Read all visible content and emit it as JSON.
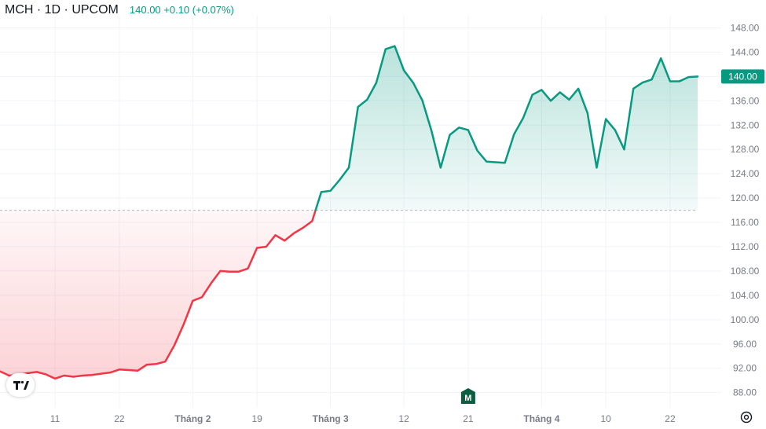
{
  "header": {
    "symbol": "MCH · 1D · UPCOM",
    "price_line": "140.00  +0.10 (+0.07%)"
  },
  "colors": {
    "up": "#089981",
    "down": "#f23645",
    "grid": "#f0f3fa",
    "axis_text": "#787b86",
    "marker_bg": "#0b5e3f"
  },
  "icons": {
    "logo": "tradingview-logo-icon",
    "settings": "gear-icon",
    "marker": "m-marker-icon"
  },
  "chart_data": {
    "type": "area",
    "title": "MCH · 1D · UPCOM",
    "baseline": 118,
    "ylim": [
      85.5,
      150
    ],
    "y_ticks": [
      88,
      92,
      96,
      100,
      104,
      108,
      112,
      116,
      120,
      124,
      128,
      132,
      136,
      140,
      144,
      148
    ],
    "y_tick_labels": [
      "88.00",
      "92.00",
      "96.00",
      "100.00",
      "104.00",
      "108.00",
      "112.00",
      "116.00",
      "120.00",
      "124.00",
      "128.00",
      "132.00",
      "136.00",
      "140.00",
      "144.00",
      "148.00"
    ],
    "x_ticks": [
      "11",
      "22",
      "Tháng 2",
      "19",
      "Tháng 3",
      "12",
      "21",
      "Tháng 4",
      "10",
      "22"
    ],
    "x_tick_bold": [
      false,
      false,
      true,
      false,
      true,
      false,
      false,
      true,
      false,
      false
    ],
    "x_tick_index": [
      6,
      13,
      21,
      28,
      36,
      44,
      51,
      59,
      66,
      73
    ],
    "last_price_label": "140.00",
    "marker_label": "M",
    "marker_index": 51,
    "values": [
      91.5,
      90.8,
      90.9,
      91.2,
      91.4,
      91.0,
      90.3,
      90.8,
      90.6,
      90.8,
      90.9,
      91.1,
      91.3,
      91.8,
      91.7,
      91.6,
      92.6,
      92.7,
      93.1,
      95.8,
      99.2,
      103.1,
      103.7,
      106.0,
      108.0,
      107.9,
      107.9,
      108.4,
      111.8,
      112.0,
      113.9,
      113.0,
      114.2,
      115.1,
      116.2,
      121.0,
      121.2,
      123.0,
      125.0,
      135.0,
      136.2,
      139.0,
      144.5,
      145.0,
      141.0,
      139.0,
      136.1,
      131.1,
      125.0,
      130.4,
      131.6,
      131.2,
      127.8,
      126.0,
      125.9,
      125.8,
      130.5,
      133.2,
      137.0,
      137.8,
      136.0,
      137.4,
      136.2,
      138.0,
      134.0,
      125.0,
      133.0,
      131.2,
      128.0,
      138.0,
      139.0,
      139.5,
      143.0,
      139.2,
      139.2,
      139.9,
      140.0
    ]
  }
}
